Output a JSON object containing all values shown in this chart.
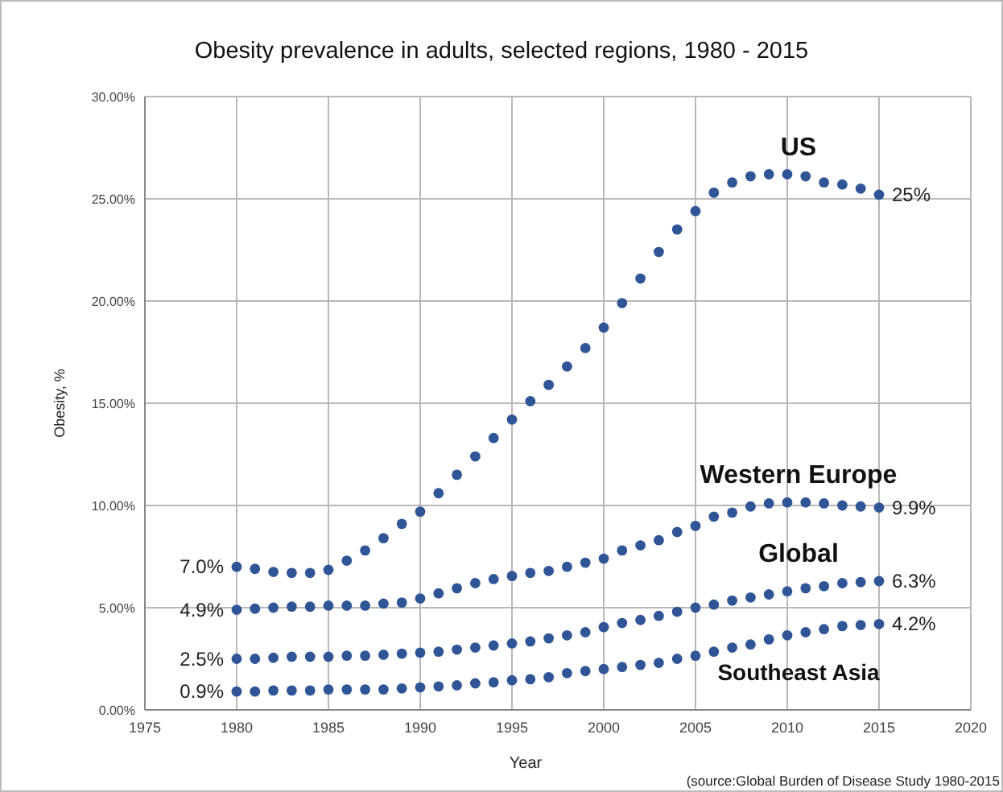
{
  "chart_data": {
    "type": "scatter",
    "title": "Obesity prevalence in adults, selected regions, 1980 - 2015",
    "xlabel": "Year",
    "ylabel": "Obesity, %",
    "x": [
      1980,
      1981,
      1982,
      1983,
      1984,
      1985,
      1986,
      1987,
      1988,
      1989,
      1990,
      1991,
      1992,
      1993,
      1994,
      1995,
      1996,
      1997,
      1998,
      1999,
      2000,
      2001,
      2002,
      2003,
      2004,
      2005,
      2006,
      2007,
      2008,
      2009,
      2010,
      2011,
      2012,
      2013,
      2014,
      2015
    ],
    "series": [
      {
        "name": "US",
        "color": "#2f5597",
        "values": [
          7.0,
          6.9,
          6.75,
          6.7,
          6.7,
          6.85,
          7.3,
          7.8,
          8.4,
          9.1,
          9.7,
          10.6,
          11.5,
          12.4,
          13.3,
          14.2,
          15.1,
          15.9,
          16.8,
          17.7,
          18.7,
          19.9,
          21.1,
          22.4,
          23.5,
          24.4,
          25.3,
          25.8,
          26.1,
          26.2,
          26.2,
          26.1,
          25.8,
          25.7,
          25.5,
          25.2
        ],
        "value_labels": [
          "7.0%",
          null,
          null,
          null,
          null,
          null,
          null,
          null,
          null,
          null,
          null,
          null,
          null,
          null,
          null,
          null,
          null,
          null,
          null,
          null,
          null,
          null,
          null,
          null,
          null,
          null,
          null,
          null,
          null,
          null,
          null,
          null,
          null,
          null,
          null,
          "25%"
        ]
      },
      {
        "name": "Western Europe",
        "color": "#2f5597",
        "values": [
          4.9,
          4.95,
          5.0,
          5.05,
          5.05,
          5.1,
          5.1,
          5.1,
          5.2,
          5.25,
          5.45,
          5.7,
          5.95,
          6.2,
          6.4,
          6.55,
          6.7,
          6.8,
          7.0,
          7.2,
          7.4,
          7.8,
          8.05,
          8.3,
          8.7,
          9.0,
          9.45,
          9.65,
          9.95,
          10.1,
          10.15,
          10.15,
          10.1,
          10.0,
          9.95,
          9.9
        ],
        "value_labels": [
          "4.9%",
          null,
          null,
          null,
          null,
          null,
          null,
          null,
          null,
          null,
          null,
          null,
          null,
          null,
          null,
          null,
          null,
          null,
          null,
          null,
          null,
          null,
          null,
          null,
          null,
          null,
          null,
          null,
          null,
          null,
          null,
          null,
          null,
          null,
          null,
          "9.9%"
        ]
      },
      {
        "name": "Global",
        "color": "#2f5597",
        "values": [
          2.5,
          2.5,
          2.55,
          2.6,
          2.6,
          2.6,
          2.65,
          2.65,
          2.7,
          2.75,
          2.8,
          2.85,
          2.95,
          3.05,
          3.15,
          3.25,
          3.35,
          3.5,
          3.65,
          3.8,
          4.05,
          4.25,
          4.4,
          4.6,
          4.8,
          5.0,
          5.15,
          5.35,
          5.5,
          5.65,
          5.8,
          5.95,
          6.05,
          6.2,
          6.25,
          6.3
        ],
        "value_labels": [
          "2.5%",
          null,
          null,
          null,
          null,
          null,
          null,
          null,
          null,
          null,
          null,
          null,
          null,
          null,
          null,
          null,
          null,
          null,
          null,
          null,
          null,
          null,
          null,
          null,
          null,
          null,
          null,
          null,
          null,
          null,
          null,
          null,
          null,
          null,
          null,
          "6.3%"
        ]
      },
      {
        "name": "Southeast Asia",
        "color": "#2f5597",
        "values": [
          0.9,
          0.9,
          0.95,
          0.95,
          0.95,
          1.0,
          1.0,
          1.0,
          1.0,
          1.05,
          1.1,
          1.15,
          1.2,
          1.3,
          1.35,
          1.45,
          1.5,
          1.6,
          1.8,
          1.9,
          2.0,
          2.1,
          2.2,
          2.3,
          2.5,
          2.65,
          2.85,
          3.05,
          3.2,
          3.45,
          3.65,
          3.8,
          3.95,
          4.1,
          4.15,
          4.2
        ],
        "value_labels": [
          "0.9%",
          null,
          null,
          null,
          null,
          null,
          null,
          null,
          null,
          null,
          null,
          null,
          null,
          null,
          null,
          null,
          null,
          null,
          null,
          null,
          null,
          null,
          null,
          null,
          null,
          null,
          null,
          null,
          null,
          null,
          null,
          null,
          null,
          null,
          null,
          "4.2%"
        ]
      }
    ],
    "xlim": [
      1975,
      2020
    ],
    "xticks": [
      1975,
      1980,
      1985,
      1990,
      1995,
      2000,
      2005,
      2010,
      2015,
      2020
    ],
    "ylim": [
      0,
      30
    ],
    "yticks": [
      {
        "value": 0,
        "label": "0.00%"
      },
      {
        "value": 5,
        "label": "5.00%"
      },
      {
        "value": 10,
        "label": "10.00%"
      },
      {
        "value": 15,
        "label": "15.00%"
      },
      {
        "value": 20,
        "label": "20.00%"
      },
      {
        "value": 25,
        "label": "25.00%"
      },
      {
        "value": 30,
        "label": "30.00%"
      }
    ],
    "grid": true,
    "marker": "circle",
    "annotations": [
      "(source:Global Burden of Disease Study 1980-2015"
    ]
  }
}
